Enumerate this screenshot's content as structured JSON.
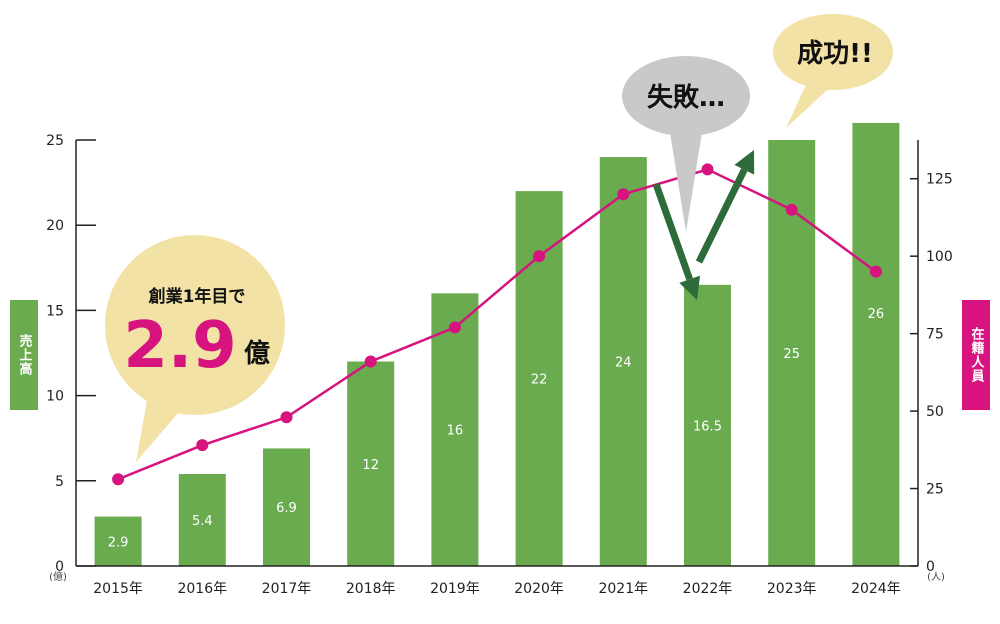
{
  "left_axis_label": "売上高",
  "right_axis_label": "在籍人員",
  "left_unit": "(億)",
  "right_unit": "(人)",
  "callouts": {
    "founding_line1": "創業1年目で",
    "founding_value": "2.9",
    "founding_unit": "億",
    "failure": "失敗…",
    "success": "成功!!"
  },
  "colors": {
    "bar": "#6aab50",
    "line": "#d6137f",
    "callout_cream": "#f3e2a6",
    "callout_grey": "#c9c9c9",
    "arrow": "#2e6b3a",
    "axis": "#222222"
  },
  "chart_data": {
    "type": "bar",
    "categories": [
      "2015年",
      "2016年",
      "2017年",
      "2018年",
      "2019年",
      "2020年",
      "2021年",
      "2022年",
      "2023年",
      "2024年"
    ],
    "series": [
      {
        "name": "売上高",
        "axis": "left",
        "values": [
          2.9,
          5.4,
          6.9,
          12,
          16,
          22,
          24,
          16.5,
          25,
          26
        ]
      },
      {
        "name": "在籍人員",
        "axis": "right",
        "type": "line",
        "values": [
          28,
          39,
          48,
          66,
          77,
          100,
          120,
          128,
          115,
          95
        ]
      }
    ],
    "left_axis": {
      "ylim": [
        0,
        25
      ],
      "ticks": [
        0,
        5,
        10,
        15,
        20,
        25
      ]
    },
    "right_axis": {
      "ylim": [
        0,
        137.5
      ],
      "ticks": [
        0,
        25,
        50,
        75,
        100,
        125
      ]
    },
    "grid": false,
    "legend": "none"
  }
}
